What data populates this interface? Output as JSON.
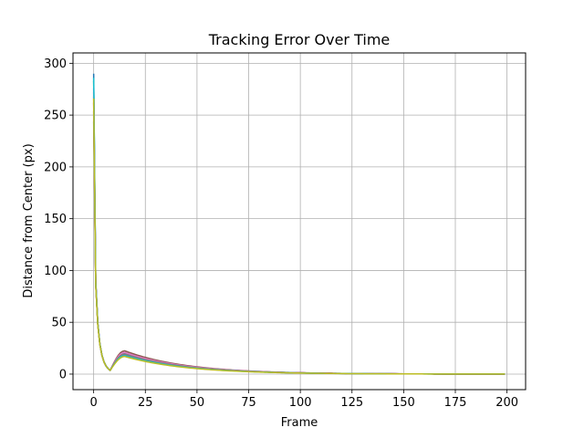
{
  "chart_data": {
    "type": "line",
    "title": "Tracking Error Over Time",
    "xlabel": "Frame",
    "ylabel": "Distance from Center (px)",
    "xlim": [
      -10,
      209
    ],
    "ylim": [
      -15,
      310
    ],
    "xticks": [
      0,
      25,
      50,
      75,
      100,
      125,
      150,
      175,
      200
    ],
    "yticks": [
      0,
      50,
      100,
      150,
      200,
      250,
      300
    ],
    "grid": true,
    "legend": "none",
    "x_range": [
      0,
      199
    ],
    "series": [
      {
        "color": "#1f77b4",
        "start": 290,
        "initial": 226,
        "peak": 21
      },
      {
        "color": "#ff7f0e",
        "start": 268,
        "initial": 218,
        "peak": 20
      },
      {
        "color": "#2ca02c",
        "start": 283,
        "initial": 222,
        "peak": 20
      },
      {
        "color": "#d62728",
        "start": 262,
        "initial": 216,
        "peak": 19
      },
      {
        "color": "#9467bd",
        "start": 276,
        "initial": 224,
        "peak": 20
      },
      {
        "color": "#8c564b",
        "start": 254,
        "initial": 229,
        "peak": 22.5
      },
      {
        "color": "#e377c2",
        "start": 272,
        "initial": 220,
        "peak": 21
      },
      {
        "color": "#7f7f7f",
        "start": 244,
        "initial": 218,
        "peak": 19.5
      },
      {
        "color": "#17becf",
        "start": 286,
        "initial": 223,
        "peak": 18
      },
      {
        "color": "#bcbd22",
        "start": 266,
        "initial": 214,
        "peak": 17
      }
    ]
  }
}
